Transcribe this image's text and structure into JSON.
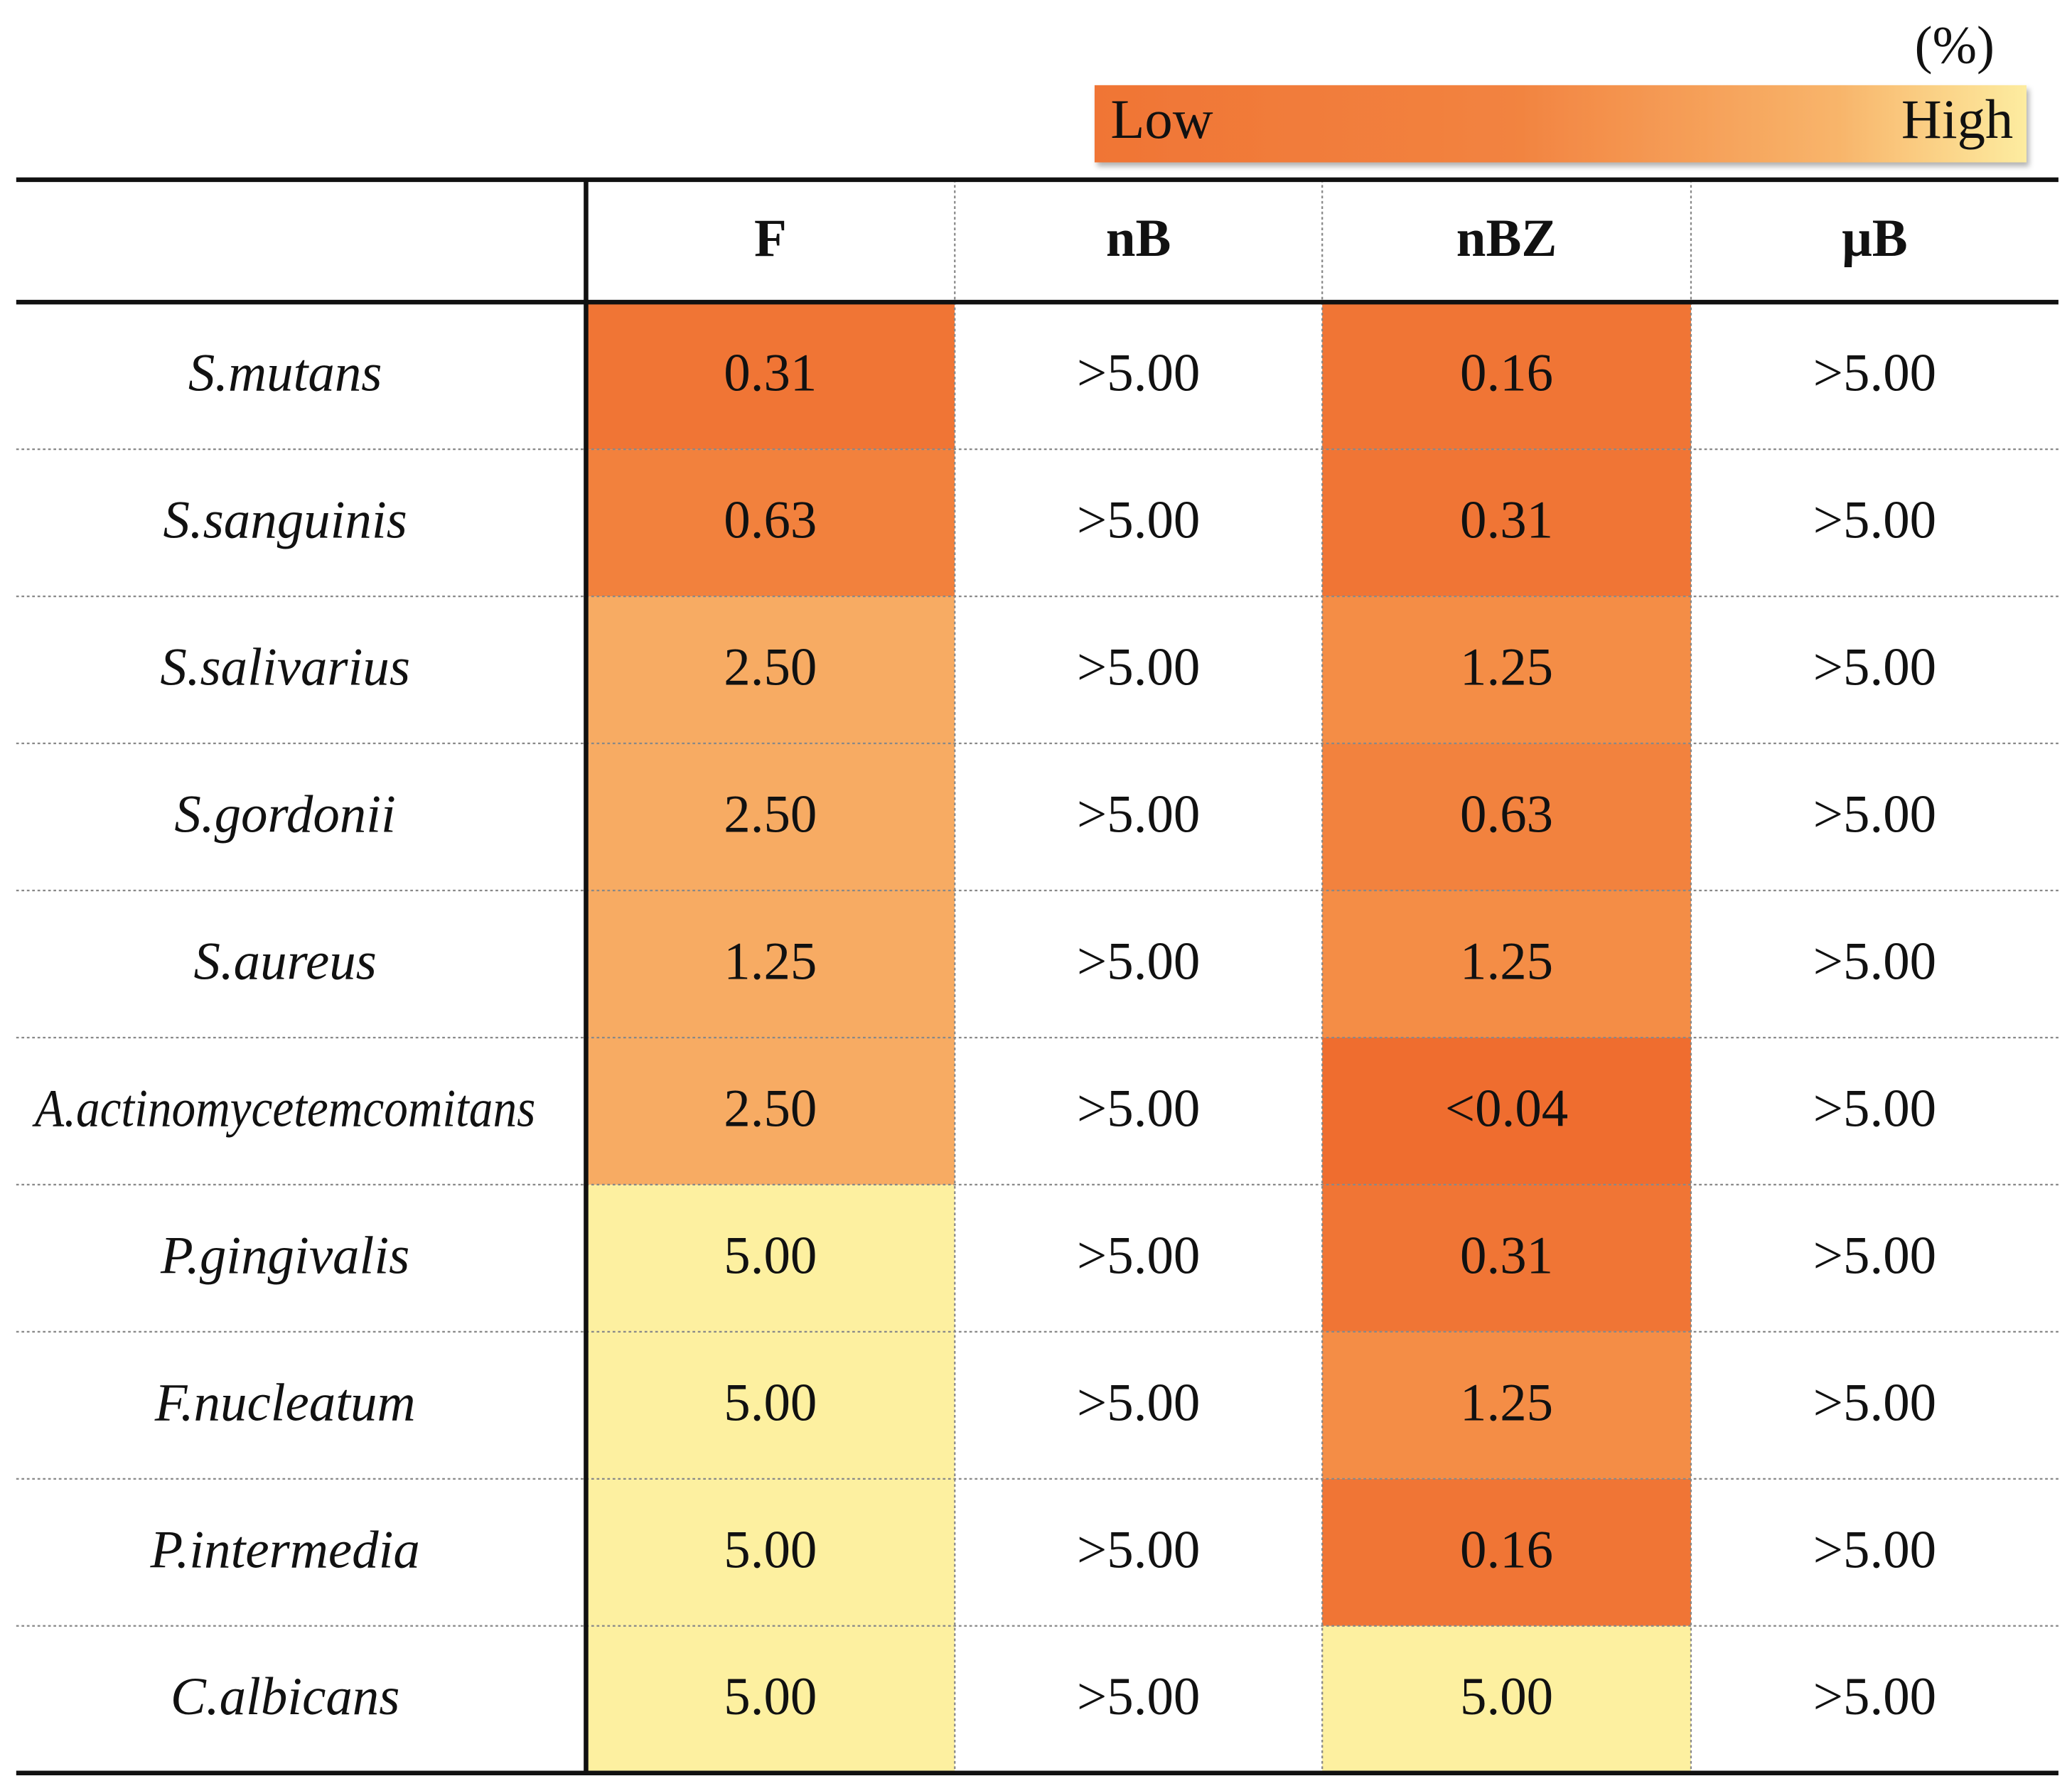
{
  "legend": {
    "unit": "(%)",
    "low": "Low",
    "high": "High"
  },
  "table": {
    "header": [
      "F",
      "nB",
      "nBZ",
      "μB"
    ],
    "rows": [
      [
        "S.mutans",
        "0.31",
        ">5.00",
        "0.16",
        ">5.00"
      ],
      [
        "S.sanguinis",
        "0.63",
        ">5.00",
        "0.31",
        ">5.00"
      ],
      [
        "S.salivarius",
        "2.50",
        ">5.00",
        "1.25",
        ">5.00"
      ],
      [
        "S.gordonii",
        "2.50",
        ">5.00",
        "0.63",
        ">5.00"
      ],
      [
        "S.aureus",
        "1.25",
        ">5.00",
        "1.25",
        ">5.00"
      ],
      [
        "A.actinomycetemcomitans",
        "2.50",
        ">5.00",
        "<0.04",
        ">5.00"
      ],
      [
        "P.gingivalis",
        "5.00",
        ">5.00",
        "0.31",
        ">5.00"
      ],
      [
        "F.nucleatum",
        "5.00",
        ">5.00",
        "1.25",
        ">5.00"
      ],
      [
        "P.intermedia",
        "5.00",
        ">5.00",
        "0.16",
        ">5.00"
      ],
      [
        "C.albicans",
        "5.00",
        ">5.00",
        "5.00",
        ">5.00"
      ]
    ],
    "cell_colors": [
      [
        "#f07535",
        "#ffffff",
        "#f07535",
        "#ffffff"
      ],
      [
        "#f2813d",
        "#ffffff",
        "#f07535",
        "#ffffff"
      ],
      [
        "#f7ab63",
        "#ffffff",
        "#f48d46",
        "#ffffff"
      ],
      [
        "#f7ab63",
        "#ffffff",
        "#f2823e",
        "#ffffff"
      ],
      [
        "#f7ab63",
        "#ffffff",
        "#f48d46",
        "#ffffff"
      ],
      [
        "#f7ab63",
        "#ffffff",
        "#ef6d2f",
        "#ffffff"
      ],
      [
        "#fdf0a0",
        "#ffffff",
        "#f07535",
        "#ffffff"
      ],
      [
        "#fdf0a0",
        "#ffffff",
        "#f48d46",
        "#ffffff"
      ],
      [
        "#fdf0a0",
        "#ffffff",
        "#f07535",
        "#ffffff"
      ],
      [
        "#fdf0a0",
        "#ffffff",
        "#fdf0a0",
        "#ffffff"
      ]
    ]
  }
}
